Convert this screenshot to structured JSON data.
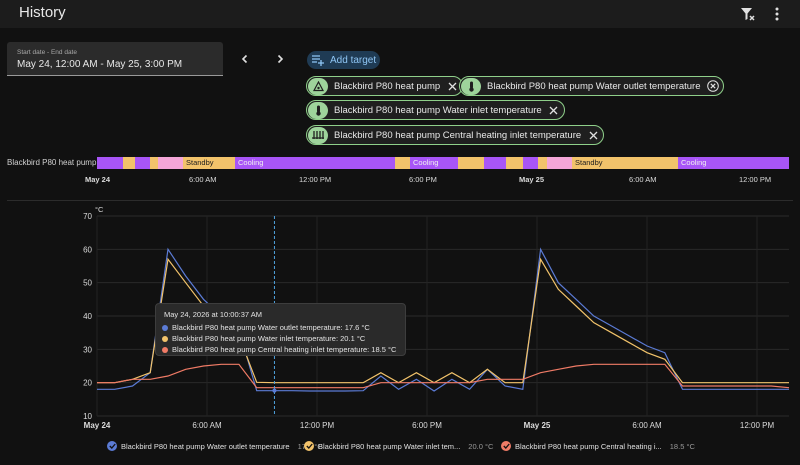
{
  "header": {
    "title": "History"
  },
  "date_range": {
    "label": "Start date - End date",
    "value": "May 24, 12:00 AM - May 25, 3:00 PM"
  },
  "add_target": {
    "label": "Add target"
  },
  "targets": [
    {
      "label": "Blackbird P80 heat pump",
      "icon": "heat-pump-icon"
    },
    {
      "label": "Blackbird P80 heat pump Water outlet temperature",
      "icon": "thermometer-icon"
    },
    {
      "label": "Blackbird P80 heat pump Water inlet temperature",
      "icon": "thermometer-icon"
    },
    {
      "label": "Blackbird P80 heat pump Central heating inlet temperature",
      "icon": "radiator-icon"
    }
  ],
  "timeline": {
    "entity": "Blackbird P80 heat pump",
    "state_labels": [
      "Standby",
      "Cooling",
      "Cooling",
      "Standby",
      "Cooling"
    ],
    "colors": {
      "heating": "#a855f7",
      "cooling": "#f2c36b",
      "standby": "#f4a6d8"
    },
    "x_ticks": [
      "May 24",
      "6:00 AM",
      "12:00 PM",
      "6:00 PM",
      "May 25",
      "6:00 AM",
      "12:00 PM"
    ]
  },
  "chart": {
    "unit": "°C",
    "y_ticks": [
      "70",
      "60",
      "50",
      "40",
      "30",
      "20",
      "10"
    ],
    "x_ticks": [
      "May 24",
      "6:00 AM",
      "12:00 PM",
      "6:00 PM",
      "May 25",
      "6:00 AM",
      "12:00 PM"
    ]
  },
  "tooltip": {
    "title": "May 24, 2026 at 10:00:37 AM",
    "rows": [
      {
        "text": "Blackbird P80 heat pump Water outlet temperature: 17.6 °C",
        "color": "#5b7bd5"
      },
      {
        "text": "Blackbird P80 heat pump Water inlet temperature: 20.1 °C",
        "color": "#f2c36b"
      },
      {
        "text": "Blackbird P80 heat pump Central heating inlet temperature: 18.5 °C",
        "color": "#f07b66"
      }
    ]
  },
  "legend": [
    {
      "label": "Blackbird P80 heat pump Water outlet temperature",
      "value": "17.6 °C",
      "color": "#5b7bd5"
    },
    {
      "label": "Blackbird P80 heat pump Water inlet tem...",
      "value": "20.0 °C",
      "color": "#f2c36b"
    },
    {
      "label": "Blackbird P80 heat pump Central heating i...",
      "value": "18.5 °C",
      "color": "#f07b66"
    }
  ],
  "chart_data": {
    "type": "line",
    "ylabel": "°C",
    "ylim": [
      10,
      70
    ],
    "x": [
      "May 24 00:00",
      "01:00",
      "02:00",
      "03:00",
      "04:00",
      "05:00",
      "06:00",
      "07:00",
      "08:00",
      "09:00",
      "10:00",
      "11:00",
      "12:00",
      "13:00",
      "14:00",
      "15:00",
      "16:00",
      "17:00",
      "18:00",
      "19:00",
      "20:00",
      "21:00",
      "22:00",
      "23:00",
      "May 25 00:00",
      "01:00",
      "02:00",
      "03:00",
      "04:00",
      "05:00",
      "06:00",
      "07:00",
      "08:00",
      "09:00",
      "10:00",
      "11:00",
      "12:00",
      "13:00",
      "14:00",
      "15:00"
    ],
    "series": [
      {
        "name": "Blackbird P80 heat pump Water outlet temperature",
        "color": "#5b7bd5",
        "values": [
          18,
          18,
          19,
          23,
          60,
          52,
          45,
          40,
          36,
          17.6,
          17.6,
          17.6,
          17.5,
          17.5,
          17.5,
          17.6,
          22,
          18,
          21,
          17.5,
          21,
          18,
          24,
          19,
          18,
          60,
          50,
          45,
          40,
          37,
          34,
          31,
          29,
          18,
          18,
          18,
          18,
          18,
          18,
          18
        ]
      },
      {
        "name": "Blackbird P80 heat pump Water inlet temperature",
        "color": "#f2c36b",
        "values": [
          20,
          20,
          21,
          23,
          57,
          50,
          43,
          38,
          34,
          20.1,
          20.0,
          20.0,
          20.0,
          20.0,
          20.0,
          20.0,
          23,
          20,
          23,
          20,
          23,
          20,
          24,
          20,
          20,
          57,
          48,
          43,
          38,
          35,
          32,
          29,
          27,
          20,
          20,
          20,
          20,
          20,
          20,
          20
        ]
      },
      {
        "name": "Blackbird P80 heat pump Central heating inlet temperature",
        "color": "#f07b66",
        "values": [
          20,
          20,
          21,
          21,
          22,
          24,
          25,
          25.5,
          25.5,
          18.5,
          18.5,
          18.5,
          18.5,
          18.5,
          18.5,
          18.5,
          20,
          20,
          20,
          20,
          20,
          20,
          21,
          21,
          21,
          23,
          24,
          25,
          25.5,
          25.5,
          25.5,
          25.5,
          25.5,
          19,
          19,
          19,
          19,
          19,
          19,
          18.5
        ]
      }
    ]
  }
}
